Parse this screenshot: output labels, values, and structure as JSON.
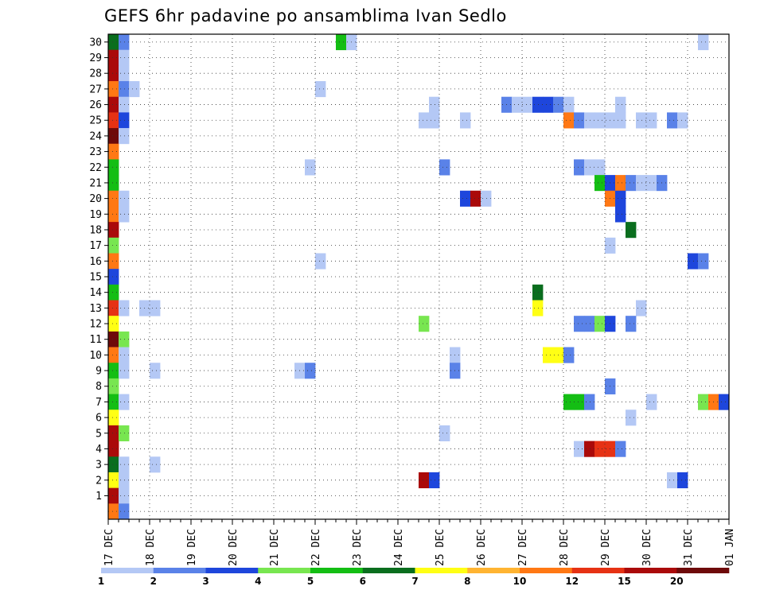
{
  "chart_data": {
    "type": "heatmap",
    "title": "GEFS 6hr padavine po ansamblima Ivan Sedlo",
    "xlabel": "",
    "ylabel": "",
    "x_tick_labels": [
      "17 DEC",
      "18 DEC",
      "19 DEC",
      "20 DEC",
      "21 DEC",
      "22 DEC",
      "23 DEC",
      "24 DEC",
      "25 DEC",
      "26 DEC",
      "27 DEC",
      "28 DEC",
      "29 DEC",
      "30 DEC",
      "31 DEC",
      "01 JAN"
    ],
    "xlim_steps": [
      0,
      60
    ],
    "y_members": [
      1,
      30
    ],
    "grid": "dotted",
    "colorbar": {
      "placement": "bottom",
      "labels": [
        "1",
        "2",
        "3",
        "4",
        "5",
        "6",
        "7",
        "8",
        "10",
        "12",
        "15",
        "20"
      ],
      "colors": [
        "#b4c8f5",
        "#5a82e8",
        "#1e46dc",
        "#78e650",
        "#14be14",
        "#0a6e1e",
        "#ffff14",
        "#ffb432",
        "#ff7814",
        "#e63214",
        "#aa0a0a",
        "#6e0a0a"
      ]
    },
    "value_levels": [
      1,
      2,
      3,
      4,
      5,
      6,
      7,
      8,
      10,
      12,
      15,
      20
    ],
    "cells": [
      [
        30,
        0,
        6
      ],
      [
        30,
        1,
        2
      ],
      [
        30,
        22,
        5
      ],
      [
        30,
        23,
        1
      ],
      [
        30,
        57,
        1
      ],
      [
        29,
        0,
        11
      ],
      [
        29,
        1,
        1
      ],
      [
        28,
        0,
        11
      ],
      [
        28,
        1,
        1
      ],
      [
        27,
        0,
        9
      ],
      [
        27,
        1,
        2
      ],
      [
        27,
        2,
        1
      ],
      [
        27,
        20,
        1
      ],
      [
        26,
        0,
        11
      ],
      [
        26,
        1,
        1
      ],
      [
        26,
        31,
        1
      ],
      [
        26,
        38,
        2
      ],
      [
        26,
        39,
        1
      ],
      [
        26,
        40,
        1
      ],
      [
        26,
        41,
        3
      ],
      [
        26,
        42,
        3
      ],
      [
        26,
        43,
        2
      ],
      [
        26,
        44,
        1
      ],
      [
        26,
        49,
        1
      ],
      [
        25,
        0,
        10
      ],
      [
        25,
        1,
        3
      ],
      [
        25,
        30,
        1
      ],
      [
        25,
        31,
        1
      ],
      [
        25,
        34,
        1
      ],
      [
        25,
        44,
        9
      ],
      [
        25,
        45,
        2
      ],
      [
        25,
        46,
        1
      ],
      [
        25,
        47,
        1
      ],
      [
        25,
        48,
        1
      ],
      [
        25,
        49,
        1
      ],
      [
        25,
        51,
        1
      ],
      [
        25,
        52,
        1
      ],
      [
        25,
        54,
        2
      ],
      [
        25,
        55,
        1
      ],
      [
        24,
        0,
        12
      ],
      [
        24,
        1,
        1
      ],
      [
        23,
        0,
        9
      ],
      [
        22,
        0,
        5
      ],
      [
        22,
        19,
        1
      ],
      [
        22,
        32,
        2
      ],
      [
        22,
        45,
        2
      ],
      [
        22,
        46,
        1
      ],
      [
        22,
        47,
        1
      ],
      [
        21,
        0,
        5
      ],
      [
        21,
        47,
        5
      ],
      [
        21,
        48,
        3
      ],
      [
        21,
        49,
        9
      ],
      [
        21,
        50,
        2
      ],
      [
        21,
        51,
        1
      ],
      [
        21,
        52,
        1
      ],
      [
        21,
        53,
        2
      ],
      [
        20,
        0,
        9
      ],
      [
        20,
        1,
        1
      ],
      [
        20,
        34,
        3
      ],
      [
        20,
        35,
        11
      ],
      [
        20,
        36,
        1
      ],
      [
        20,
        48,
        9
      ],
      [
        20,
        49,
        3
      ],
      [
        19,
        0,
        9
      ],
      [
        19,
        1,
        1
      ],
      [
        19,
        49,
        3
      ],
      [
        18,
        0,
        11
      ],
      [
        18,
        50,
        6
      ],
      [
        17,
        0,
        4
      ],
      [
        17,
        48,
        1
      ],
      [
        16,
        0,
        9
      ],
      [
        16,
        20,
        1
      ],
      [
        16,
        56,
        3
      ],
      [
        16,
        57,
        2
      ],
      [
        15,
        0,
        3
      ],
      [
        14,
        0,
        5
      ],
      [
        14,
        41,
        6
      ],
      [
        13,
        0,
        10
      ],
      [
        13,
        1,
        1
      ],
      [
        13,
        3,
        1
      ],
      [
        13,
        4,
        1
      ],
      [
        13,
        41,
        7
      ],
      [
        13,
        51,
        1
      ],
      [
        12,
        0,
        7
      ],
      [
        12,
        30,
        4
      ],
      [
        12,
        45,
        2
      ],
      [
        12,
        46,
        2
      ],
      [
        12,
        47,
        4
      ],
      [
        12,
        48,
        3
      ],
      [
        12,
        50,
        2
      ],
      [
        11,
        0,
        12
      ],
      [
        11,
        1,
        4
      ],
      [
        10,
        0,
        9
      ],
      [
        10,
        1,
        1
      ],
      [
        10,
        33,
        1
      ],
      [
        10,
        42,
        7
      ],
      [
        10,
        43,
        7
      ],
      [
        10,
        44,
        2
      ],
      [
        9,
        0,
        5
      ],
      [
        9,
        1,
        1
      ],
      [
        9,
        4,
        1
      ],
      [
        9,
        18,
        1
      ],
      [
        9,
        19,
        2
      ],
      [
        9,
        33,
        2
      ],
      [
        8,
        0,
        4
      ],
      [
        8,
        48,
        2
      ],
      [
        7,
        0,
        5
      ],
      [
        7,
        1,
        1
      ],
      [
        7,
        44,
        5
      ],
      [
        7,
        45,
        5
      ],
      [
        7,
        46,
        2
      ],
      [
        7,
        52,
        1
      ],
      [
        7,
        57,
        4
      ],
      [
        7,
        58,
        9
      ],
      [
        7,
        59,
        3
      ],
      [
        6,
        0,
        7
      ],
      [
        6,
        50,
        1
      ],
      [
        5,
        0,
        11
      ],
      [
        5,
        1,
        4
      ],
      [
        5,
        32,
        1
      ],
      [
        4,
        0,
        11
      ],
      [
        4,
        45,
        1
      ],
      [
        4,
        46,
        11
      ],
      [
        4,
        47,
        10
      ],
      [
        4,
        48,
        10
      ],
      [
        4,
        49,
        2
      ],
      [
        3,
        0,
        6
      ],
      [
        3,
        1,
        1
      ],
      [
        3,
        4,
        1
      ],
      [
        2,
        0,
        7
      ],
      [
        2,
        1,
        1
      ],
      [
        2,
        30,
        11
      ],
      [
        2,
        31,
        3
      ],
      [
        2,
        54,
        1
      ],
      [
        2,
        55,
        3
      ],
      [
        1,
        0,
        11
      ],
      [
        1,
        1,
        1
      ],
      [
        0,
        0,
        9
      ],
      [
        0,
        1,
        2
      ]
    ]
  }
}
